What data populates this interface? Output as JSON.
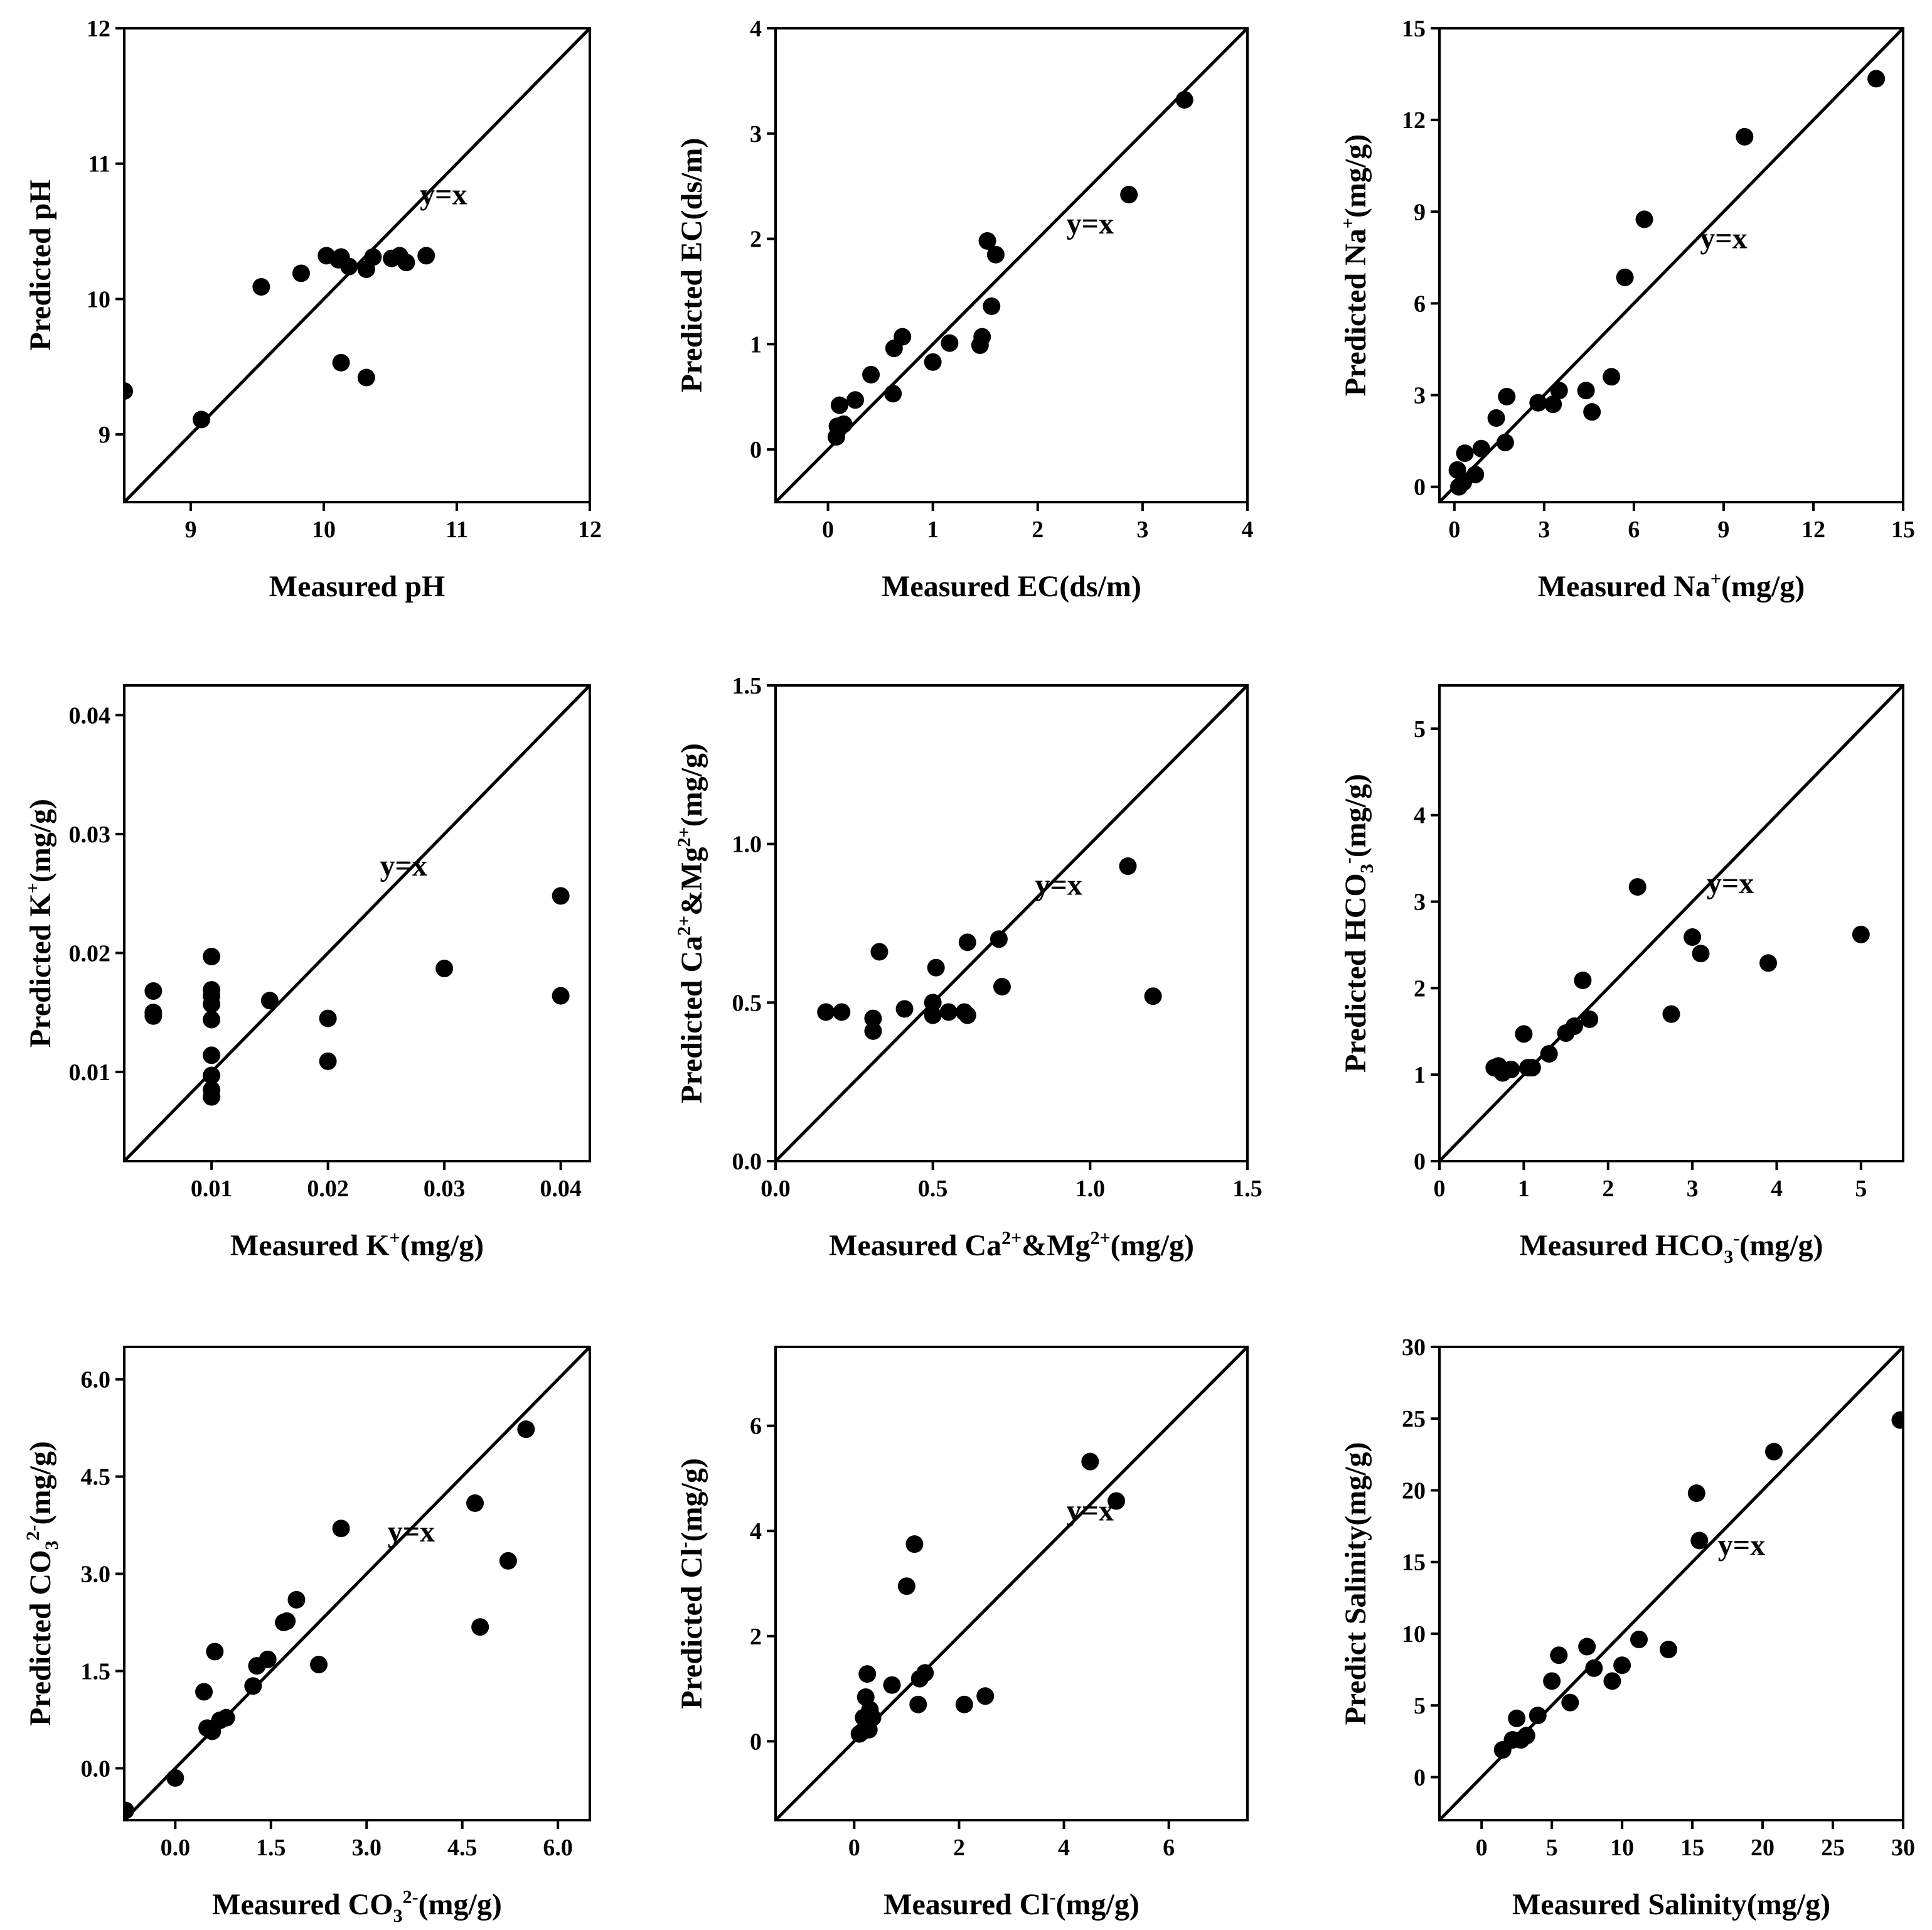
{
  "annotation": "y=x",
  "chart_data": [
    {
      "type": "scatter",
      "xlabel": "Measured pH",
      "ylabel": "Predicted pH",
      "xlim": [
        8.5,
        12
      ],
      "ylim": [
        8.5,
        12
      ],
      "xticks": [
        9,
        10,
        11,
        12
      ],
      "yticks": [
        9,
        10,
        11,
        12
      ],
      "xtick_labels": [
        "9",
        "10",
        "11",
        "12"
      ],
      "ytick_labels": [
        "9",
        "10",
        "11",
        "12"
      ],
      "annotation_pos": [
        10.9,
        10.7
      ],
      "identity_line": true,
      "points": [
        [
          8.5,
          9.32
        ],
        [
          9.08,
          9.11
        ],
        [
          9.53,
          10.09
        ],
        [
          9.83,
          10.19
        ],
        [
          10.02,
          10.32
        ],
        [
          10.11,
          10.29
        ],
        [
          10.13,
          10.31
        ],
        [
          10.19,
          10.24
        ],
        [
          10.32,
          10.22
        ],
        [
          10.37,
          10.31
        ],
        [
          10.51,
          10.3
        ],
        [
          10.57,
          10.32
        ],
        [
          10.62,
          10.27
        ],
        [
          10.77,
          10.32
        ],
        [
          10.13,
          9.53
        ],
        [
          10.32,
          9.42
        ]
      ]
    },
    {
      "type": "scatter",
      "xlabel": "Measured EC(ds/m)",
      "ylabel": "Predicted EC(ds/m)",
      "xlim": [
        -0.5,
        4
      ],
      "ylim": [
        -0.5,
        4
      ],
      "xticks": [
        0,
        1,
        2,
        3,
        4
      ],
      "yticks": [
        0,
        1,
        2,
        3,
        4
      ],
      "xtick_labels": [
        "0",
        "1",
        "2",
        "3",
        "4"
      ],
      "ytick_labels": [
        "0",
        "1",
        "2",
        "3",
        "4"
      ],
      "annotation_pos": [
        2.5,
        2.05
      ],
      "identity_line": true,
      "points": [
        [
          0.08,
          0.12
        ],
        [
          0.09,
          0.22
        ],
        [
          0.11,
          0.42
        ],
        [
          0.15,
          0.24
        ],
        [
          0.26,
          0.47
        ],
        [
          0.41,
          0.71
        ],
        [
          0.62,
          0.53
        ],
        [
          0.63,
          0.96
        ],
        [
          0.71,
          1.07
        ],
        [
          1.0,
          0.83
        ],
        [
          1.16,
          1.01
        ],
        [
          1.45,
          0.99
        ],
        [
          1.47,
          1.07
        ],
        [
          1.52,
          1.98
        ],
        [
          1.56,
          1.36
        ],
        [
          1.6,
          1.85
        ],
        [
          2.87,
          2.42
        ],
        [
          3.4,
          3.32
        ]
      ]
    },
    {
      "type": "scatter",
      "xlabel": "Measured Na+(mg/g)",
      "ylabel": "Predicted Na+(mg/g)",
      "xlim": [
        -0.5,
        15
      ],
      "ylim": [
        -0.5,
        15
      ],
      "xticks": [
        0,
        3,
        6,
        9,
        12,
        15
      ],
      "yticks": [
        0,
        3,
        6,
        9,
        12,
        15
      ],
      "xtick_labels": [
        "0",
        "3",
        "6",
        "9",
        "12",
        "15"
      ],
      "ytick_labels": [
        "0",
        "3",
        "6",
        "9",
        "12",
        "15"
      ],
      "annotation_pos": [
        9.0,
        7.8
      ],
      "identity_line": true,
      "points": [
        [
          0.1,
          0.55
        ],
        [
          0.15,
          0.0
        ],
        [
          0.3,
          0.15
        ],
        [
          0.35,
          1.1
        ],
        [
          0.7,
          0.4
        ],
        [
          0.9,
          1.25
        ],
        [
          1.4,
          2.25
        ],
        [
          1.7,
          1.45
        ],
        [
          1.75,
          2.95
        ],
        [
          2.8,
          2.75
        ],
        [
          3.3,
          2.7
        ],
        [
          3.5,
          3.15
        ],
        [
          4.4,
          3.15
        ],
        [
          4.6,
          2.45
        ],
        [
          5.25,
          3.6
        ],
        [
          5.7,
          6.85
        ],
        [
          6.35,
          8.75
        ],
        [
          9.7,
          11.45
        ],
        [
          14.1,
          13.35
        ]
      ]
    },
    {
      "type": "scatter",
      "xlabel": "Measured K+(mg/g)",
      "ylabel": "Predicted K+(mg/g)",
      "xlim": [
        0.0025,
        0.0425
      ],
      "ylim": [
        0.0025,
        0.0425
      ],
      "xticks": [
        0.01,
        0.02,
        0.03,
        0.04
      ],
      "yticks": [
        0.01,
        0.02,
        0.03,
        0.04
      ],
      "xtick_labels": [
        "0.01",
        "0.02",
        "0.03",
        "0.04"
      ],
      "ytick_labels": [
        "0.01",
        "0.02",
        "0.03",
        "0.04"
      ],
      "annotation_pos": [
        0.0265,
        0.0265
      ],
      "identity_line": true,
      "points": [
        [
          0.005,
          0.0168
        ],
        [
          0.005,
          0.015
        ],
        [
          0.005,
          0.0147
        ],
        [
          0.01,
          0.0197
        ],
        [
          0.01,
          0.0169
        ],
        [
          0.01,
          0.0164
        ],
        [
          0.01,
          0.0157
        ],
        [
          0.01,
          0.0144
        ],
        [
          0.01,
          0.0114
        ],
        [
          0.01,
          0.0097
        ],
        [
          0.01,
          0.0085
        ],
        [
          0.01,
          0.0079
        ],
        [
          0.015,
          0.016
        ],
        [
          0.02,
          0.0145
        ],
        [
          0.02,
          0.0109
        ],
        [
          0.03,
          0.0187
        ],
        [
          0.04,
          0.0248
        ],
        [
          0.04,
          0.0164
        ]
      ]
    },
    {
      "type": "scatter",
      "xlabel": "Measured Ca2+&Mg2+(mg/g)",
      "ylabel": "Predicted Ca2+&Mg2+(mg/g)",
      "xlim": [
        0,
        1.5
      ],
      "ylim": [
        0,
        1.5
      ],
      "xticks": [
        0,
        0.5,
        1.0,
        1.5
      ],
      "yticks": [
        0,
        0.5,
        1.0,
        1.5
      ],
      "xtick_labels": [
        "0.0",
        "0.5",
        "1.0",
        "1.5"
      ],
      "ytick_labels": [
        "0.0",
        "0.5",
        "1.0",
        "1.5"
      ],
      "annotation_pos": [
        0.9,
        0.84
      ],
      "identity_line": true,
      "points": [
        [
          0.16,
          0.47
        ],
        [
          0.21,
          0.47
        ],
        [
          0.31,
          0.45
        ],
        [
          0.31,
          0.41
        ],
        [
          0.33,
          0.66
        ],
        [
          0.41,
          0.48
        ],
        [
          0.5,
          0.46
        ],
        [
          0.5,
          0.5
        ],
        [
          0.51,
          0.61
        ],
        [
          0.55,
          0.47
        ],
        [
          0.6,
          0.47
        ],
        [
          0.61,
          0.46
        ],
        [
          0.61,
          0.69
        ],
        [
          0.71,
          0.7
        ],
        [
          0.72,
          0.55
        ],
        [
          1.12,
          0.93
        ],
        [
          1.2,
          0.52
        ]
      ]
    },
    {
      "type": "scatter",
      "xlabel": "Measured HCO3-(mg/g)",
      "ylabel": "Predicted HCO3-(mg/g)",
      "xlim": [
        0,
        5.5
      ],
      "ylim": [
        0,
        5.5
      ],
      "xticks": [
        0,
        1,
        2,
        3,
        4,
        5
      ],
      "yticks": [
        0,
        1,
        2,
        3,
        4,
        5
      ],
      "xtick_labels": [
        "0",
        "1",
        "2",
        "3",
        "4",
        "5"
      ],
      "ytick_labels": [
        "0",
        "1",
        "2",
        "3",
        "4",
        "5"
      ],
      "annotation_pos": [
        3.45,
        3.1
      ],
      "identity_line": true,
      "points": [
        [
          0.65,
          1.08
        ],
        [
          0.7,
          1.1
        ],
        [
          0.75,
          1.02
        ],
        [
          0.85,
          1.06
        ],
        [
          1.0,
          1.47
        ],
        [
          1.05,
          1.08
        ],
        [
          1.1,
          1.08
        ],
        [
          1.3,
          1.24
        ],
        [
          1.5,
          1.48
        ],
        [
          1.6,
          1.56
        ],
        [
          1.7,
          2.09
        ],
        [
          1.78,
          1.64
        ],
        [
          2.35,
          3.17
        ],
        [
          2.75,
          1.7
        ],
        [
          3.0,
          2.59
        ],
        [
          3.1,
          2.4
        ],
        [
          3.9,
          2.29
        ],
        [
          5.0,
          2.62
        ]
      ]
    },
    {
      "type": "scatter",
      "xlabel": "Measured CO32-(mg/g)",
      "ylabel": "Predicted CO32-(mg/g)",
      "xlim": [
        -0.8,
        6.5
      ],
      "ylim": [
        -0.8,
        6.5
      ],
      "xticks": [
        0,
        1.5,
        3.0,
        4.5,
        6.0
      ],
      "yticks": [
        0,
        1.5,
        3.0,
        4.5,
        6.0
      ],
      "xtick_labels": [
        "0.0",
        "1.5",
        "3.0",
        "4.5",
        "6.0"
      ],
      "ytick_labels": [
        "0.0",
        "1.5",
        "3.0",
        "4.5",
        "6.0"
      ],
      "annotation_pos": [
        3.7,
        3.5
      ],
      "identity_line": true,
      "points": [
        [
          -0.78,
          -0.65
        ],
        [
          0.0,
          -0.15
        ],
        [
          0.45,
          1.18
        ],
        [
          0.5,
          0.62
        ],
        [
          0.58,
          0.57
        ],
        [
          0.62,
          1.8
        ],
        [
          0.7,
          0.74
        ],
        [
          0.8,
          0.78
        ],
        [
          1.22,
          1.27
        ],
        [
          1.28,
          1.58
        ],
        [
          1.45,
          1.68
        ],
        [
          1.7,
          2.25
        ],
        [
          1.75,
          2.27
        ],
        [
          1.9,
          2.6
        ],
        [
          2.25,
          1.6
        ],
        [
          2.6,
          3.7
        ],
        [
          4.7,
          4.09
        ],
        [
          4.78,
          2.18
        ],
        [
          5.22,
          3.2
        ],
        [
          5.5,
          5.23
        ]
      ]
    },
    {
      "type": "scatter",
      "xlabel": "Measured Cl-(mg/g)",
      "ylabel": "Predicted Cl-(mg/g)",
      "xlim": [
        -1.5,
        7.5
      ],
      "ylim": [
        -1.5,
        7.5
      ],
      "xticks": [
        0,
        2,
        4,
        6
      ],
      "yticks": [
        0,
        2,
        4,
        6
      ],
      "xtick_labels": [
        "0",
        "2",
        "4",
        "6"
      ],
      "ytick_labels": [
        "0",
        "2",
        "4",
        "6"
      ],
      "annotation_pos": [
        4.5,
        4.2
      ],
      "identity_line": true,
      "points": [
        [
          0.1,
          0.14
        ],
        [
          0.15,
          0.18
        ],
        [
          0.18,
          0.45
        ],
        [
          0.22,
          0.84
        ],
        [
          0.25,
          1.28
        ],
        [
          0.28,
          0.22
        ],
        [
          0.3,
          0.6
        ],
        [
          0.35,
          0.45
        ],
        [
          0.72,
          1.07
        ],
        [
          1.0,
          2.95
        ],
        [
          1.15,
          3.75
        ],
        [
          1.22,
          0.7
        ],
        [
          1.25,
          1.19
        ],
        [
          1.35,
          1.3
        ],
        [
          2.1,
          0.7
        ],
        [
          2.5,
          0.86
        ],
        [
          4.5,
          5.32
        ],
        [
          5.0,
          4.57
        ]
      ]
    },
    {
      "type": "scatter",
      "xlabel": "Measured Salinity(mg/g)",
      "ylabel": "Predicted Salinity(mg/g)",
      "xlim": [
        -3,
        30
      ],
      "ylim": [
        -3,
        30
      ],
      "xticks": [
        0,
        5,
        10,
        15,
        20,
        25,
        30
      ],
      "yticks": [
        0,
        5,
        10,
        15,
        20,
        25,
        30
      ],
      "xtick_labels": [
        "0",
        "5",
        "10",
        "15",
        "20",
        "25",
        "30"
      ],
      "ytick_labels": [
        "0",
        "5",
        "10",
        "15",
        "20",
        "25",
        "30"
      ],
      "annotation_pos": [
        18.5,
        15.5
      ],
      "identity_line": true,
      "points": [
        [
          1.5,
          1.9
        ],
        [
          2.2,
          2.6
        ],
        [
          2.5,
          4.1
        ],
        [
          2.8,
          2.6
        ],
        [
          3.2,
          2.9
        ],
        [
          4.0,
          4.3
        ],
        [
          5.0,
          6.7
        ],
        [
          5.5,
          8.5
        ],
        [
          6.3,
          5.2
        ],
        [
          7.5,
          9.1
        ],
        [
          8.0,
          7.6
        ],
        [
          9.3,
          6.7
        ],
        [
          10.0,
          7.8
        ],
        [
          11.2,
          9.6
        ],
        [
          13.3,
          8.9
        ],
        [
          15.3,
          19.8
        ],
        [
          15.5,
          16.5
        ],
        [
          20.8,
          22.7
        ],
        [
          29.8,
          24.9
        ]
      ]
    }
  ]
}
